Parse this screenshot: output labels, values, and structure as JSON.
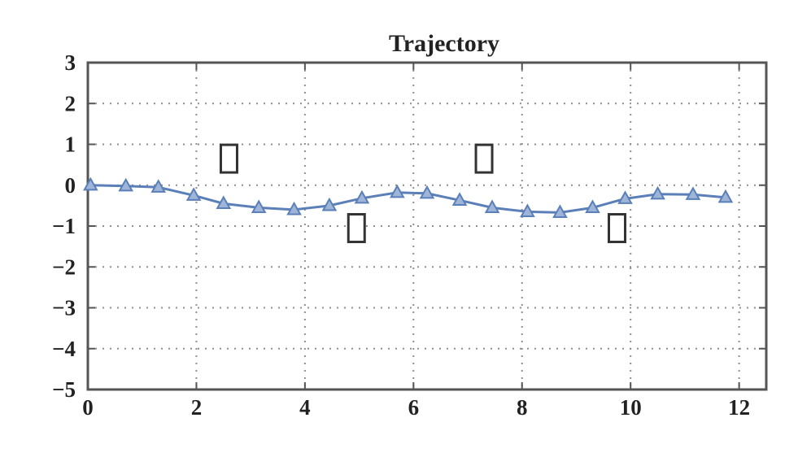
{
  "chart_data": {
    "type": "line",
    "title": "Trajectory",
    "xlabel": "",
    "ylabel": "",
    "xlim": [
      0,
      12.5
    ],
    "ylim": [
      -5,
      3
    ],
    "grid": true,
    "x_ticks": [
      0,
      2,
      4,
      6,
      8,
      10,
      12
    ],
    "y_ticks": [
      3,
      2,
      1,
      0,
      -1,
      -2,
      -3,
      -4,
      -5
    ],
    "x_tick_labels": [
      "0",
      "2",
      "4",
      "6",
      "8",
      "10",
      "12"
    ],
    "y_tick_labels": [
      "3",
      "2",
      "1",
      "0",
      "−1",
      "−2",
      "−3",
      "−4",
      "−5"
    ],
    "series": [
      {
        "color": "#5b7fb8",
        "marker": "triangle",
        "x": [
          0.05,
          0.7,
          1.3,
          1.95,
          2.5,
          3.15,
          3.8,
          4.45,
          5.05,
          5.7,
          6.25,
          6.85,
          7.45,
          8.1,
          8.7,
          9.3,
          9.9,
          10.5,
          11.15,
          11.75
        ],
        "y": [
          0.0,
          -0.02,
          -0.05,
          -0.25,
          -0.45,
          -0.55,
          -0.6,
          -0.5,
          -0.32,
          -0.18,
          -0.2,
          -0.37,
          -0.55,
          -0.65,
          -0.67,
          -0.55,
          -0.33,
          -0.22,
          -0.23,
          -0.3
        ]
      }
    ],
    "annotations": [
      {
        "shape": "rectangle",
        "x": 2.6,
        "y": 0.65
      },
      {
        "shape": "rectangle",
        "x": 7.3,
        "y": 0.65
      },
      {
        "shape": "rectangle",
        "x": 4.95,
        "y": -1.05
      },
      {
        "shape": "rectangle",
        "x": 9.75,
        "y": -1.05
      }
    ]
  }
}
